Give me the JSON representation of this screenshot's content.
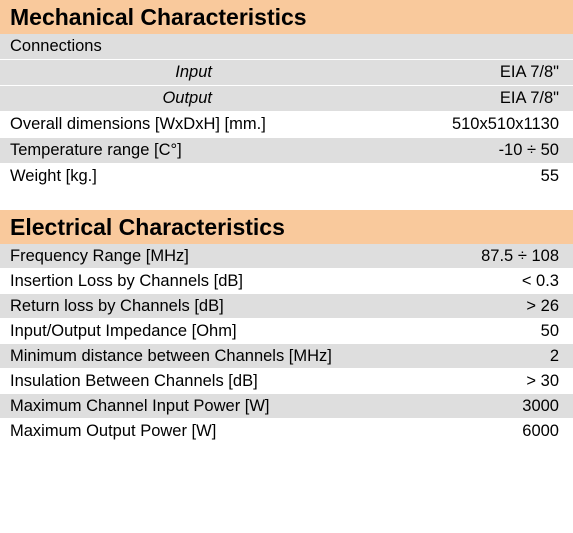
{
  "colors": {
    "header_bg": "#f9c99c",
    "row_shaded": "#dedede",
    "row_plain": "#ffffff"
  },
  "mechanical": {
    "title": "Mechanical Characteristics",
    "connections_label": "Connections",
    "input_label": "Input",
    "input_value": "EIA 7/8\"",
    "output_label": "Output",
    "output_value": "EIA 7/8\"",
    "rows": [
      {
        "label": "Overall dimensions [WxDxH] [mm.]",
        "value": "510x510x1130"
      },
      {
        "label": "Temperature range [C°]",
        "value": "-10 ÷ 50"
      },
      {
        "label": "Weight [kg.]",
        "value": "55"
      }
    ]
  },
  "electrical": {
    "title": "Electrical Characteristics",
    "rows": [
      {
        "label": "Frequency Range [MHz]",
        "value": "87.5 ÷ 108"
      },
      {
        "label": "Insertion Loss by Channels [dB]",
        "value": "< 0.3"
      },
      {
        "label": "Return loss by Channels [dB]",
        "value": "> 26"
      },
      {
        "label": "Input/Output Impedance [Ohm]",
        "value": "50"
      },
      {
        "label": "Minimum distance between Channels [MHz]",
        "value": "2"
      },
      {
        "label": "Insulation Between Channels [dB]",
        "value": "> 30"
      },
      {
        "label": "Maximum Channel Input Power [W]",
        "value": "3000"
      },
      {
        "label": "Maximum Output Power [W]",
        "value": "6000"
      }
    ]
  }
}
